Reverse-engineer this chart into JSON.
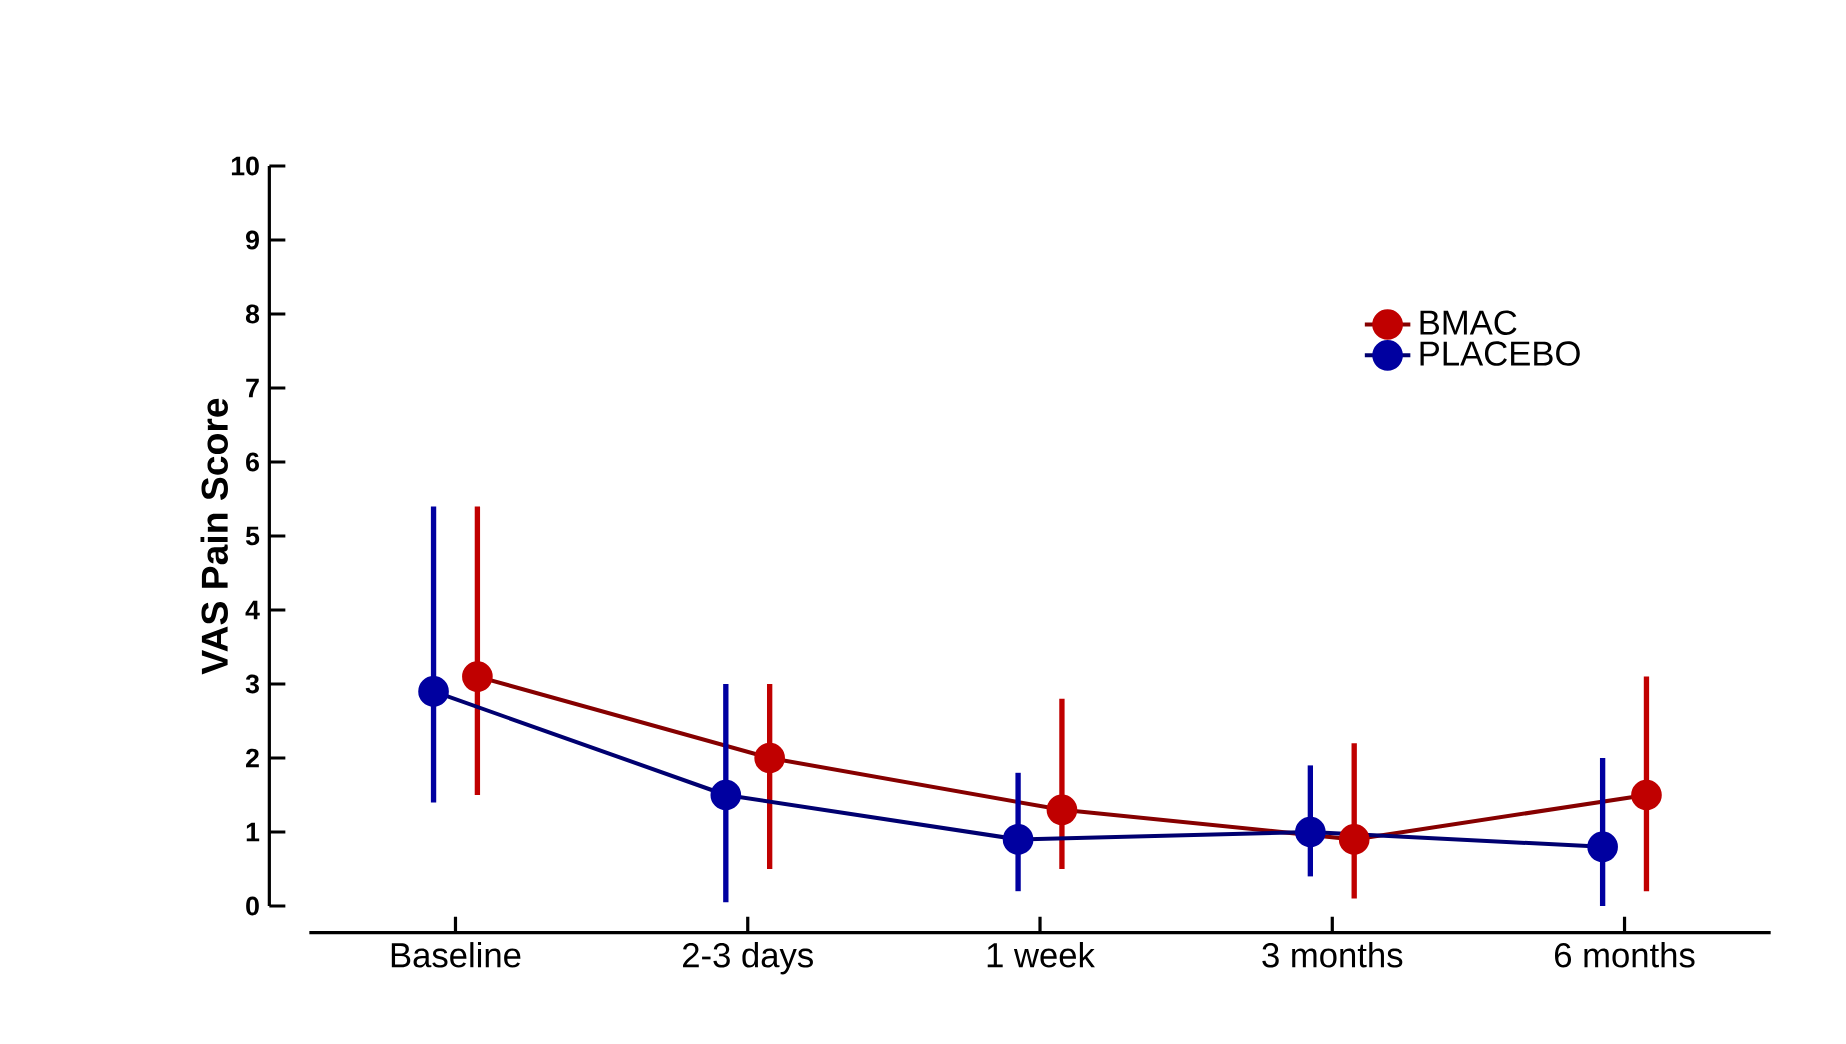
{
  "chart_data": {
    "type": "line",
    "ylabel": "VAS Pain Score",
    "categories": [
      "Baseline",
      "2-3 days",
      "1 week",
      "3 months",
      "6 months"
    ],
    "series": [
      {
        "name": "BMAC",
        "color": "#c00000",
        "values": [
          3.1,
          2.0,
          1.3,
          0.9,
          1.5
        ],
        "errors": [
          [
            1.5,
            5.4
          ],
          [
            0.5,
            3.0
          ],
          [
            0.5,
            2.8
          ],
          [
            0.1,
            2.2
          ],
          [
            0.2,
            3.1
          ]
        ]
      },
      {
        "name": "PLACEBO",
        "color": "#0000a0",
        "values": [
          2.9,
          1.5,
          0.9,
          1.0,
          0.8
        ],
        "errors": [
          [
            1.4,
            5.4
          ],
          [
            0.05,
            3.0
          ],
          [
            0.2,
            1.8
          ],
          [
            0.4,
            1.9
          ],
          [
            0.0,
            2.0
          ]
        ]
      }
    ],
    "ylim": [
      0,
      10
    ],
    "yticks": [
      0,
      1,
      2,
      3,
      4,
      5,
      6,
      7,
      8,
      9,
      10
    ],
    "legend": "top right",
    "marker": "circle",
    "line_style": "solid",
    "grid": false
  }
}
